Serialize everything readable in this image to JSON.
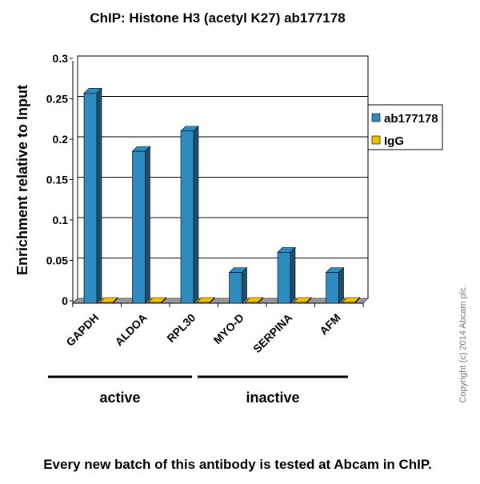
{
  "chart_data": {
    "type": "bar",
    "title": "ChIP: Histone H3 (acetyl K27) ab177178",
    "ylabel": "Enrichment  relative to Input",
    "xlabel": "",
    "ylim": [
      0,
      0.3
    ],
    "yticks": [
      "0",
      "0.05",
      "0.1",
      "0.15",
      "0.2",
      "0.25",
      "0.3"
    ],
    "grid": true,
    "legend_placement": "right",
    "categories": [
      "GAPDH",
      "ALDOA",
      "RPL30",
      "MYO-D",
      "SERPINA",
      "AFM"
    ],
    "series": [
      {
        "name": "ab177178",
        "color": "#2e8bc0",
        "values": [
          0.26,
          0.188,
          0.213,
          0.038,
          0.063,
          0.038
        ]
      },
      {
        "name": "IgG",
        "color": "#f2c200",
        "values": [
          0.001,
          0.001,
          0.001,
          0.001,
          0.001,
          0.001
        ]
      }
    ],
    "groups": [
      {
        "label": "active",
        "categories": [
          "GAPDH",
          "ALDOA",
          "RPL30"
        ]
      },
      {
        "label": "inactive",
        "categories": [
          "MYO-D",
          "SERPINA",
          "AFM"
        ]
      }
    ]
  },
  "copyright": "Copyright (c) 2014 Abcam plc.",
  "footer": "Every new batch of this antibody is tested at Abcam in ChIP."
}
